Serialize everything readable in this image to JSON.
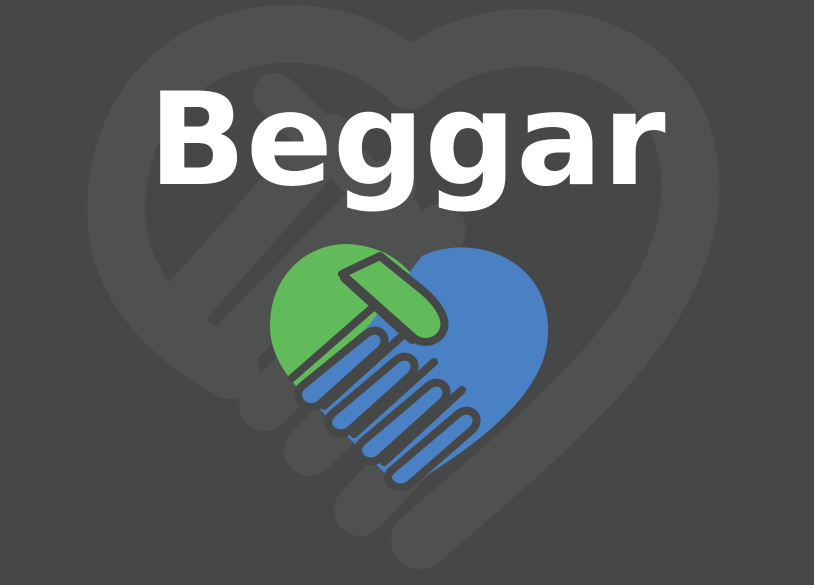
{
  "brand": {
    "name": "Beggar"
  },
  "colors": {
    "background": "#464747",
    "watermark": "#4f5050",
    "wordmark": "#ffffff",
    "hand_green": "#62bb5b",
    "hand_blue": "#4a80c4",
    "outline": "#464747"
  },
  "icons": {
    "logo": "handshake-heart-icon",
    "watermark": "handshake-heart-watermark-icon"
  }
}
